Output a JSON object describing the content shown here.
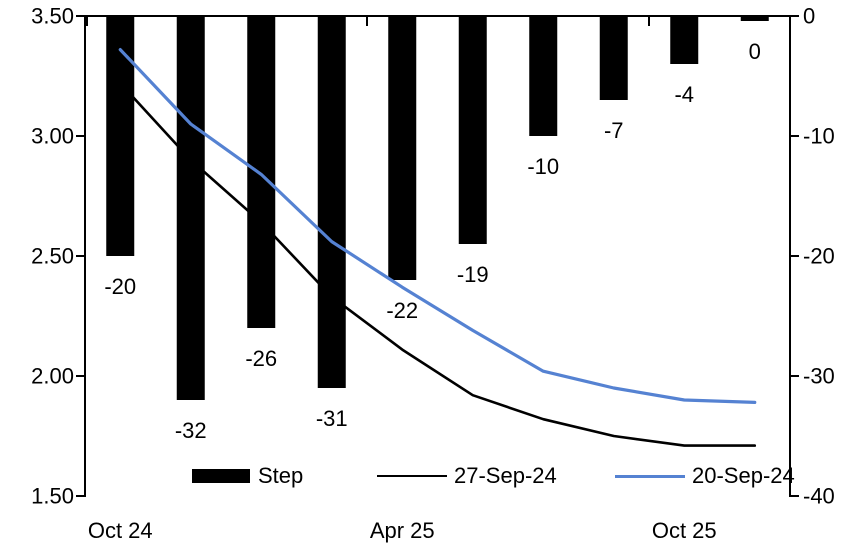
{
  "chart_data": {
    "type": "combo-bar-line",
    "n_categories": 10,
    "grid": "off",
    "x_axis": {
      "tick_labels": [
        "Oct 24",
        "Apr 25",
        "Oct 25"
      ],
      "tick_label_category_index": [
        0,
        4,
        8
      ],
      "boundary_tick_category_index": [
        0,
        4,
        8
      ]
    },
    "left_axis": {
      "tick_labels": [
        "3.50",
        "3.00",
        "2.50",
        "2.00",
        "1.50"
      ],
      "max": 3.5,
      "min": 1.5
    },
    "right_axis": {
      "tick_labels": [
        "0",
        "-10",
        "-20",
        "-30",
        "-40"
      ],
      "max": 0,
      "min": -40
    },
    "bar_series": {
      "name": "Step",
      "axis": "right",
      "color": "#000000",
      "values": [
        -20,
        -32,
        -26,
        -31,
        -22,
        -19,
        -10,
        -7,
        -4,
        0
      ],
      "data_labels": [
        "-20",
        "-32",
        "-26",
        "-31",
        "-22",
        "-19",
        "-10",
        "-7",
        "-4",
        "0"
      ]
    },
    "line_series": [
      {
        "name": "27-Sep-24",
        "axis": "left",
        "color": "#000000",
        "stroke_width": 2.6,
        "values": [
          3.22,
          2.9,
          2.64,
          2.33,
          2.11,
          1.92,
          1.82,
          1.75,
          1.71,
          1.71
        ]
      },
      {
        "name": "20-Sep-24",
        "axis": "left",
        "color": "#5582d2",
        "stroke_width": 3.2,
        "values": [
          3.36,
          3.05,
          2.84,
          2.56,
          2.37,
          2.19,
          2.02,
          1.95,
          1.9,
          1.89
        ]
      }
    ],
    "legend": {
      "position": "bottom-inside"
    }
  }
}
